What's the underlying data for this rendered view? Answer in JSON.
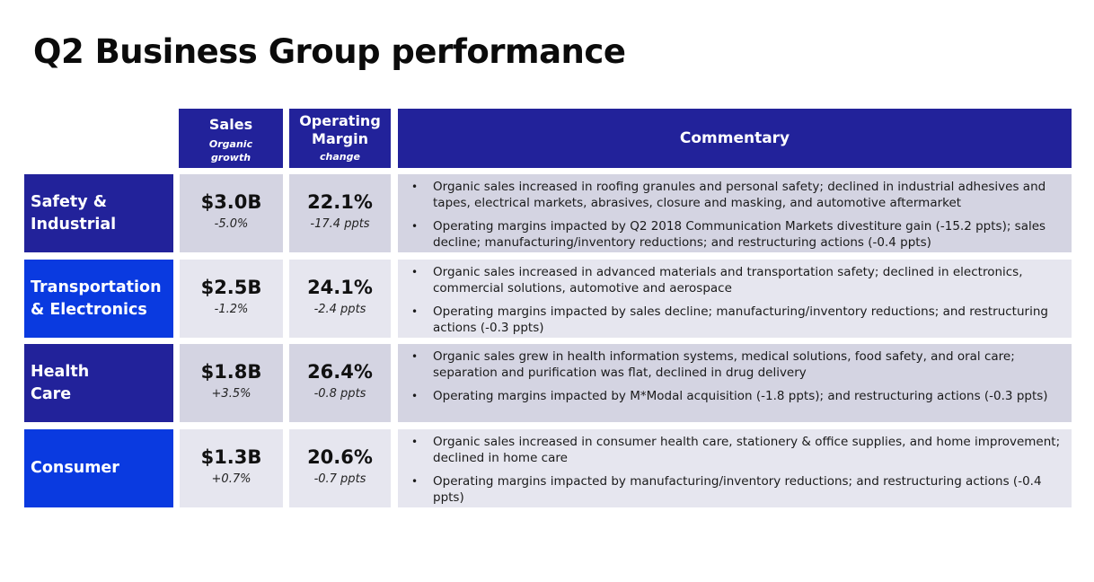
{
  "title": "Q2 Business Group performance",
  "colors": {
    "header_bg": "#22229a",
    "label_dark": "#22229a",
    "label_bright": "#0a3ae0",
    "cell_dark": "#d4d4e2",
    "cell_light": "#e6e6ef"
  },
  "headers": {
    "sales": "Sales",
    "sales_sub_1": "Organic",
    "sales_sub_2": "growth",
    "margin_1": "Operating",
    "margin_2": "Margin",
    "margin_sub": "change",
    "commentary": "Commentary"
  },
  "rows": [
    {
      "label_1": "Safety &",
      "label_2": "Industrial",
      "sales": "$3.0B",
      "growth": "-5.0%",
      "margin": "22.1%",
      "margin_change": "-17.4 ppts",
      "bullets": [
        "Organic sales increased in roofing granules and personal safety; declined in industrial adhesives and tapes, electrical markets, abrasives, closure and masking, and automotive aftermarket",
        "Operating margins impacted by Q2 2018 Communication Markets divestiture gain (-15.2 ppts); sales decline; manufacturing/inventory reductions; and restructuring actions (-0.4 ppts)"
      ]
    },
    {
      "label_1": "Transportation",
      "label_2": "& Electronics",
      "sales": "$2.5B",
      "growth": "-1.2%",
      "margin": "24.1%",
      "margin_change": "-2.4 ppts",
      "bullets": [
        "Organic sales increased in advanced materials and transportation safety; declined in electronics, commercial solutions, automotive and aerospace",
        "Operating margins impacted by sales decline; manufacturing/inventory reductions; and restructuring actions (-0.3 ppts)"
      ]
    },
    {
      "label_1": "Health",
      "label_2": "Care",
      "sales": "$1.8B",
      "growth": "+3.5%",
      "margin": "26.4%",
      "margin_change": "-0.8 ppts",
      "bullets": [
        "Organic sales grew in health information systems, medical solutions, food safety, and oral care; separation and purification was flat, declined in drug delivery",
        "Operating margins impacted by M*Modal acquisition (-1.8 ppts); and restructuring actions (-0.3 ppts)"
      ]
    },
    {
      "label_1": "Consumer",
      "label_2": "",
      "sales": "$1.3B",
      "growth": "+0.7%",
      "margin": "20.6%",
      "margin_change": "-0.7 ppts",
      "bullets": [
        "Organic sales increased in consumer health care, stationery & office supplies, and home improvement; declined in home care",
        "Operating margins impacted by manufacturing/inventory reductions; and restructuring actions (-0.4 ppts)"
      ]
    }
  ]
}
